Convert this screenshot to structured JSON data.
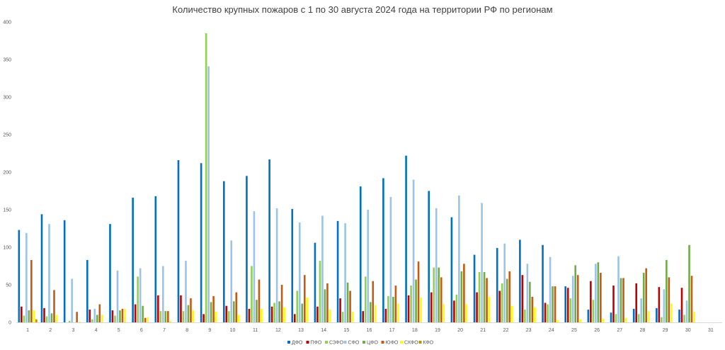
{
  "chart_data": {
    "type": "bar",
    "title": "Количество крупных пожаров с 1 по 30 августа 2024 года на территории РФ по регионам",
    "xlabel": "",
    "ylabel": "",
    "ylim": [
      0,
      400
    ],
    "yticks": [
      0,
      50,
      100,
      150,
      200,
      250,
      300,
      350,
      400
    ],
    "grid": false,
    "legend_position": "bottom",
    "categories": [
      "1",
      "2",
      "3",
      "4",
      "5",
      "6",
      "7",
      "8",
      "9",
      "10",
      "11",
      "12",
      "13",
      "14",
      "15",
      "16",
      "17",
      "18",
      "19",
      "20",
      "21",
      "22",
      "23",
      "24",
      "25",
      "26",
      "27",
      "28",
      "29",
      "30",
      "31"
    ],
    "series": [
      {
        "name": "ДФО",
        "color": "#0070C0",
        "values": [
          123,
          144,
          136,
          83,
          131,
          166,
          168,
          216,
          212,
          188,
          195,
          217,
          151,
          106,
          135,
          181,
          192,
          222,
          175,
          140,
          90,
          99,
          110,
          103,
          48,
          17,
          13,
          18,
          19,
          17,
          null
        ]
      },
      {
        "name": "ПФО",
        "color": "#C00000",
        "values": [
          21,
          19,
          0,
          17,
          16,
          24,
          36,
          36,
          11,
          22,
          18,
          21,
          11,
          21,
          32,
          15,
          18,
          36,
          40,
          29,
          40,
          42,
          63,
          26,
          46,
          55,
          49,
          52,
          47,
          46,
          null
        ]
      },
      {
        "name": "СЗФО",
        "color": "#92D050",
        "values": [
          9,
          8,
          2,
          4,
          9,
          61,
          15,
          15,
          385,
          15,
          75,
          26,
          42,
          82,
          14,
          61,
          35,
          49,
          73,
          37,
          67,
          52,
          17,
          24,
          32,
          30,
          11,
          11,
          7,
          10,
          null
        ]
      },
      {
        "name": "СФО",
        "color": "#9DC3E6",
        "values": [
          119,
          131,
          58,
          18,
          69,
          72,
          75,
          82,
          341,
          109,
          148,
          152,
          133,
          142,
          132,
          150,
          167,
          190,
          152,
          169,
          159,
          105,
          78,
          87,
          62,
          78,
          88,
          32,
          44,
          29,
          null
        ]
      },
      {
        "name": "ЦФО",
        "color": "#70AD47",
        "values": [
          16,
          12,
          0,
          10,
          16,
          22,
          15,
          23,
          27,
          28,
          30,
          28,
          25,
          44,
          53,
          27,
          34,
          57,
          73,
          68,
          67,
          58,
          54,
          48,
          76,
          80,
          59,
          66,
          83,
          103,
          null
        ]
      },
      {
        "name": "ЮФО",
        "color": "#C55A11",
        "values": [
          83,
          43,
          14,
          24,
          18,
          6,
          15,
          32,
          35,
          40,
          57,
          50,
          63,
          52,
          42,
          55,
          49,
          81,
          60,
          78,
          59,
          68,
          34,
          48,
          63,
          66,
          59,
          72,
          60,
          62,
          null
        ]
      },
      {
        "name": "СКФО",
        "color": "#FFFF00",
        "values": [
          16,
          10,
          1,
          10,
          18,
          7,
          2,
          16,
          14,
          10,
          18,
          20,
          33,
          17,
          14,
          23,
          25,
          33,
          24,
          24,
          34,
          22,
          20,
          3,
          4,
          5,
          6,
          15,
          25,
          14,
          null
        ]
      },
      {
        "name": "КФО",
        "color": "#BF8F00",
        "values": [
          4,
          0,
          0,
          0,
          0,
          0,
          0,
          0,
          0,
          0,
          0,
          0,
          0,
          0,
          0,
          0,
          0,
          0,
          0,
          0,
          0,
          0,
          0,
          0,
          0,
          0,
          0,
          0,
          0,
          0,
          null
        ]
      }
    ]
  }
}
